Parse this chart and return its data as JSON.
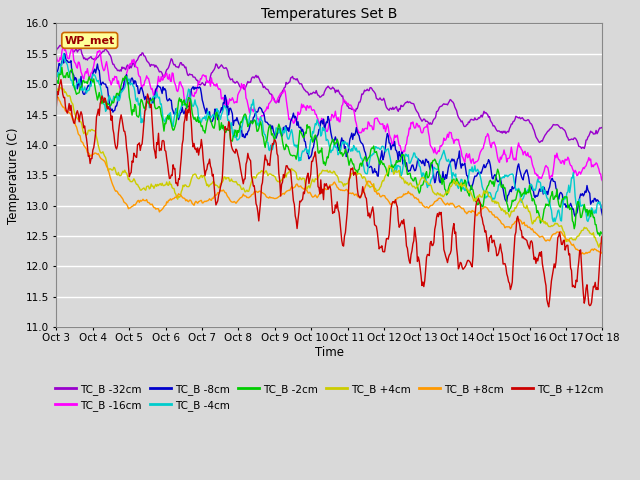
{
  "title": "Temperatures Set B",
  "xlabel": "Time",
  "ylabel": "Temperature (C)",
  "ylim": [
    11.0,
    16.0
  ],
  "yticks": [
    11.0,
    11.5,
    12.0,
    12.5,
    13.0,
    13.5,
    14.0,
    14.5,
    15.0,
    15.5,
    16.0
  ],
  "x_labels": [
    "Oct 3",
    "Oct 4",
    "Oct 5",
    "Oct 6",
    "Oct 7",
    "Oct 8",
    "Oct 9",
    "Oct 10",
    "Oct 11",
    "Oct 12",
    "Oct 13",
    "Oct 14",
    "Oct 15",
    "Oct 16",
    "Oct 17",
    "Oct 18"
  ],
  "wp_met_label": "WP_met",
  "series": [
    {
      "label": "TC_B -32cm",
      "color": "#9900cc"
    },
    {
      "label": "TC_B -16cm",
      "color": "#ff00ff"
    },
    {
      "label": "TC_B -8cm",
      "color": "#0000cc"
    },
    {
      "label": "TC_B -4cm",
      "color": "#00cccc"
    },
    {
      "label": "TC_B -2cm",
      "color": "#00cc00"
    },
    {
      "label": "TC_B +4cm",
      "color": "#cccc00"
    },
    {
      "label": "TC_B +8cm",
      "color": "#ff9900"
    },
    {
      "label": "TC_B +12cm",
      "color": "#cc0000"
    }
  ],
  "background_color": "#d9d9d9",
  "plot_bg_color": "#d9d9d9",
  "grid_color": "#ffffff",
  "n_points": 600
}
